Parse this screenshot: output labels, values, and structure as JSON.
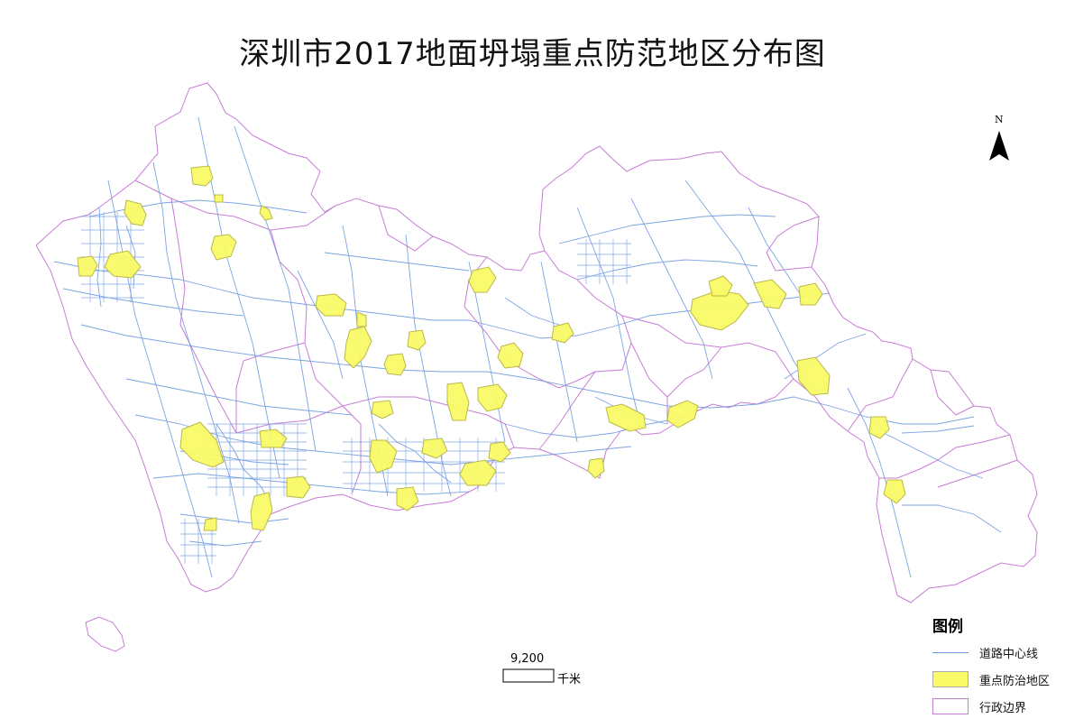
{
  "title": "深圳市2017地面坍塌重点防范地区分布图",
  "north_arrow": {
    "label": "N"
  },
  "scale_bar": {
    "value": "9,200",
    "unit": "千米"
  },
  "legend": {
    "title": "图例",
    "items": [
      {
        "label": "道路中心线",
        "symbol": "road-line",
        "color": "#6f9be0"
      },
      {
        "label": "重点防治地区",
        "symbol": "zone-fill",
        "color": "#fafa66"
      },
      {
        "label": "行政边界",
        "symbol": "boundary-outline",
        "color": "#c77dd6"
      }
    ]
  },
  "colors": {
    "boundary": "#c77dd6",
    "road": "#6f9be0",
    "zone_fill": "#fafa66",
    "zone_stroke": "#b8b84a"
  }
}
